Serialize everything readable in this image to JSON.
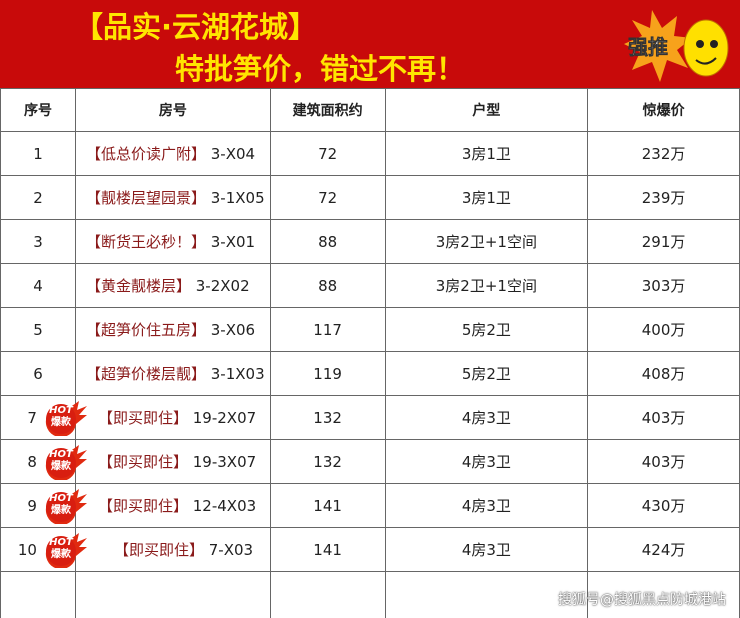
{
  "banner": {
    "title": "【品实·云湖花城】",
    "subtitle": "特批笋价，错过不再！",
    "badge": "强推"
  },
  "colors": {
    "banner": "#c80a0a",
    "title": "#ffe500",
    "tag": "#8a1a1a"
  },
  "table": {
    "headers": [
      "序号",
      "房号",
      "建筑面积约",
      "户型",
      "惊爆价"
    ],
    "rows": [
      {
        "no": "1",
        "tag": "【低总价读广附】",
        "unit": "3-X04",
        "area": "72",
        "layout": "3房1卫",
        "price": "232万",
        "hot": false
      },
      {
        "no": "2",
        "tag": "【靓楼层望园景】",
        "unit": "3-1X05",
        "area": "72",
        "layout": "3房1卫",
        "price": "239万",
        "hot": false
      },
      {
        "no": "3",
        "tag": "【断货王必秒！】",
        "unit": "3-X01",
        "area": "88",
        "layout": "3房2卫+1空间",
        "price": "291万",
        "hot": false
      },
      {
        "no": "4",
        "tag": "【黄金靓楼层】",
        "unit": "3-2X02",
        "area": "88",
        "layout": "3房2卫+1空间",
        "price": "303万",
        "hot": false
      },
      {
        "no": "5",
        "tag": "【超笋价住五房】",
        "unit": "3-X06",
        "area": "117",
        "layout": "5房2卫",
        "price": "400万",
        "hot": false
      },
      {
        "no": "6",
        "tag": "【超笋价楼层靓】",
        "unit": "3-1X03",
        "area": "119",
        "layout": "5房2卫",
        "price": "408万",
        "hot": false
      },
      {
        "no": "7",
        "tag": "【即买即住】",
        "unit": "19-2X07",
        "area": "132",
        "layout": "4房3卫",
        "price": "403万",
        "hot": true
      },
      {
        "no": "8",
        "tag": "【即买即住】",
        "unit": "19-3X07",
        "area": "132",
        "layout": "4房3卫",
        "price": "403万",
        "hot": true
      },
      {
        "no": "9",
        "tag": "【即买即住】",
        "unit": "12-4X03",
        "area": "141",
        "layout": "4房3卫",
        "price": "430万",
        "hot": true
      },
      {
        "no": "10",
        "tag": "【即买即住】",
        "unit": "7-X03",
        "area": "141",
        "layout": "4房3卫",
        "price": "424万",
        "hot": true
      }
    ]
  },
  "hot_badge": {
    "line1": "HOT",
    "line2": "爆款"
  },
  "watermark": "搜狐号@搜狐黑点防城港站"
}
